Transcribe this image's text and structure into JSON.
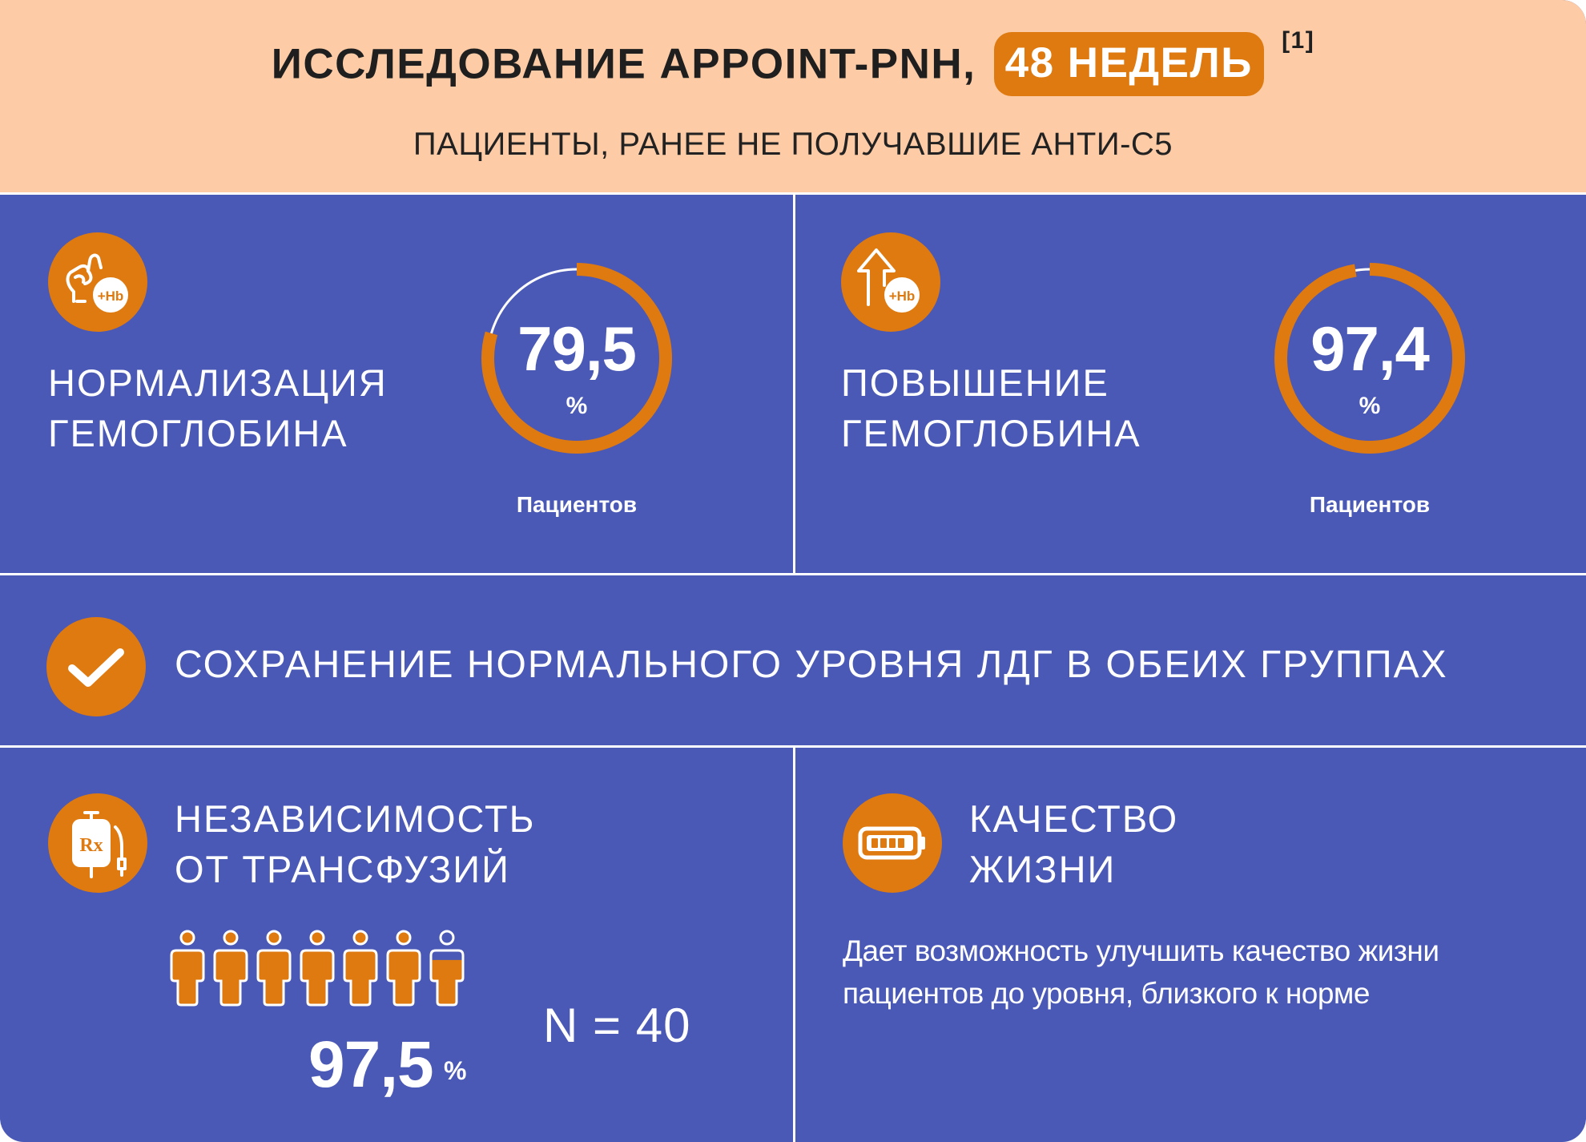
{
  "header": {
    "title_main": "ИССЛЕДОВАНИЕ APPOINT-PNH,",
    "title_highlight": "48 НЕДЕЛЬ",
    "title_ref": "[1]",
    "subtitle": "ПАЦИЕНТЫ, РАНЕЕ НЕ ПОЛУЧАВШИЕ АНТИ-С5"
  },
  "normalization": {
    "icon": "ok-hand-hb-icon",
    "icon_badge": "+Hb",
    "label_line1": "НОРМАЛИЗАЦИЯ",
    "label_line2": "ГЕМОГЛОБИНА",
    "value": "79,5",
    "unit": "%",
    "caption": "Пациентов",
    "percent": 79.5
  },
  "increase": {
    "icon": "arrow-up-hb-icon",
    "icon_badge": "+Hb",
    "label_line1": "ПОВЫШЕНИЕ",
    "label_line2": "ГЕМОГЛОБИНА",
    "value": "97,4",
    "unit": "%",
    "caption": "Пациентов",
    "percent": 97.4
  },
  "ldh": {
    "icon": "checkmark-icon",
    "text": "СОХРАНЕНИЕ НОРМАЛЬНОГО УРОВНЯ ЛДГ В ОБЕИХ ГРУППАХ"
  },
  "transfusion": {
    "icon": "iv-bag-rx-icon",
    "icon_badge": "Rx",
    "label_line1": "НЕЗАВИСИМОСТЬ",
    "label_line2": "ОТ ТРАНСФУЗИЙ",
    "value": "97,5",
    "unit": "%",
    "percent": 97.5,
    "people_icon": "person-icon",
    "n_text": "N = 40"
  },
  "quality": {
    "icon": "battery-icon",
    "label_line1": "КАЧЕСТВО",
    "label_line2": "ЖИЗНИ",
    "description": "Дает возможность улучшить качество жизни пациентов до уровня, близкого к норме"
  },
  "colors": {
    "accent": "#de7a10",
    "panel": "#4a58b6",
    "header_bg": "#fdcca6",
    "text_dark": "#1f1f1f",
    "white": "#ffffff"
  }
}
